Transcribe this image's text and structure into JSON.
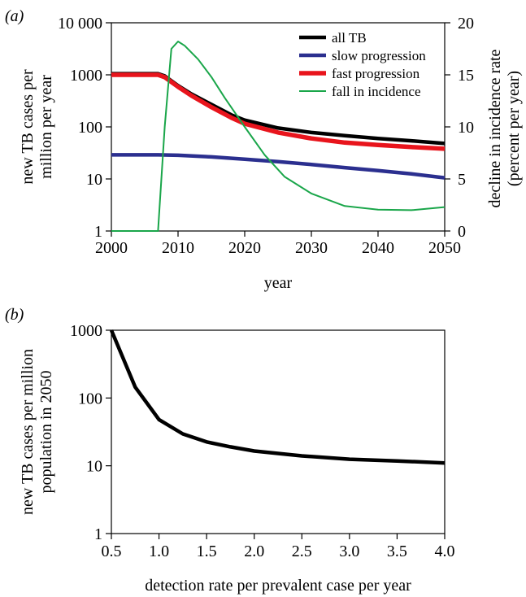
{
  "panels": {
    "a": {
      "label": "(a)"
    },
    "b": {
      "label": "(b)"
    }
  },
  "chart_data": [
    {
      "type": "line",
      "panel": "(a)",
      "xlabel": "year",
      "ylabel_left": "new TB cases per million per year",
      "ylabel_right": "decline in incidence rate (percent per year)",
      "xlim": [
        2000,
        2050
      ],
      "ylim_left": [
        1,
        10000
      ],
      "yscale_left": "log",
      "ylim_right": [
        0,
        20
      ],
      "xticks": [
        2000,
        2010,
        2020,
        2030,
        2040,
        2050
      ],
      "yticks_left": [
        {
          "value": 1,
          "label": "1"
        },
        {
          "value": 10,
          "label": "10"
        },
        {
          "value": 100,
          "label": "100"
        },
        {
          "value": 1000,
          "label": "1000"
        },
        {
          "value": 10000,
          "label": "10 000"
        }
      ],
      "yticks_right": [
        0,
        5,
        10,
        15,
        20
      ],
      "legend": "top-right",
      "grid": false,
      "series": [
        {
          "name": "all TB",
          "axis": "left",
          "color": "#000000",
          "width": 4.5,
          "x": [
            2000,
            2007,
            2008,
            2010,
            2012,
            2015,
            2018,
            2020,
            2025,
            2030,
            2035,
            2040,
            2045,
            2050
          ],
          "y": [
            1050,
            1050,
            950,
            620,
            430,
            270,
            170,
            135,
            95,
            78,
            68,
            60,
            54,
            48
          ]
        },
        {
          "name": "slow progression",
          "axis": "left",
          "color": "#2b2f8f",
          "width": 4.5,
          "x": [
            2000,
            2007,
            2010,
            2015,
            2020,
            2025,
            2030,
            2035,
            2040,
            2045,
            2050
          ],
          "y": [
            29,
            29,
            28.5,
            26.5,
            24,
            21.5,
            19,
            16.5,
            14.5,
            12.5,
            10.5
          ]
        },
        {
          "name": "fast progression",
          "axis": "left",
          "color": "#e8141c",
          "width": 5.5,
          "x": [
            2000,
            2007,
            2008,
            2010,
            2012,
            2015,
            2018,
            2020,
            2025,
            2030,
            2035,
            2040,
            2045,
            2050
          ],
          "y": [
            1000,
            1000,
            900,
            590,
            400,
            240,
            150,
            115,
            78,
            60,
            50,
            45,
            41,
            38
          ]
        },
        {
          "name": "fall in incidence",
          "axis": "right",
          "color": "#1aa64a",
          "width": 2,
          "x": [
            2000,
            2007,
            2008,
            2009,
            2010,
            2011,
            2013,
            2015,
            2017,
            2020,
            2023,
            2026,
            2030,
            2035,
            2040,
            2045,
            2050
          ],
          "y": [
            0,
            0,
            10,
            17.5,
            18.2,
            17.8,
            16.5,
            14.8,
            12.8,
            10,
            7.3,
            5.2,
            3.6,
            2.4,
            2.05,
            2.0,
            2.3
          ]
        }
      ]
    },
    {
      "type": "line",
      "panel": "(b)",
      "xlabel": "detection rate per prevalent case per year",
      "ylabel": "new TB cases per million population in 2050",
      "xlim": [
        0.5,
        4.0
      ],
      "ylim": [
        1,
        1000
      ],
      "yscale": "log",
      "xticks": [
        0.5,
        1.0,
        1.5,
        2.0,
        2.5,
        3.0,
        3.5,
        4.0
      ],
      "xticklabels": [
        "0.5",
        "1.0",
        "1.5",
        "2.0",
        "2.5",
        "3.0",
        "3.5",
        "4.0"
      ],
      "yticks": [
        1,
        10,
        100,
        1000
      ],
      "grid": false,
      "series": [
        {
          "color": "#000000",
          "width": 4.5,
          "x": [
            0.5,
            0.75,
            1.0,
            1.25,
            1.5,
            1.75,
            2.0,
            2.5,
            3.0,
            3.5,
            4.0
          ],
          "y": [
            1000,
            145,
            48,
            29.5,
            22.5,
            19,
            16.5,
            14,
            12.5,
            11.8,
            11
          ]
        }
      ]
    }
  ]
}
